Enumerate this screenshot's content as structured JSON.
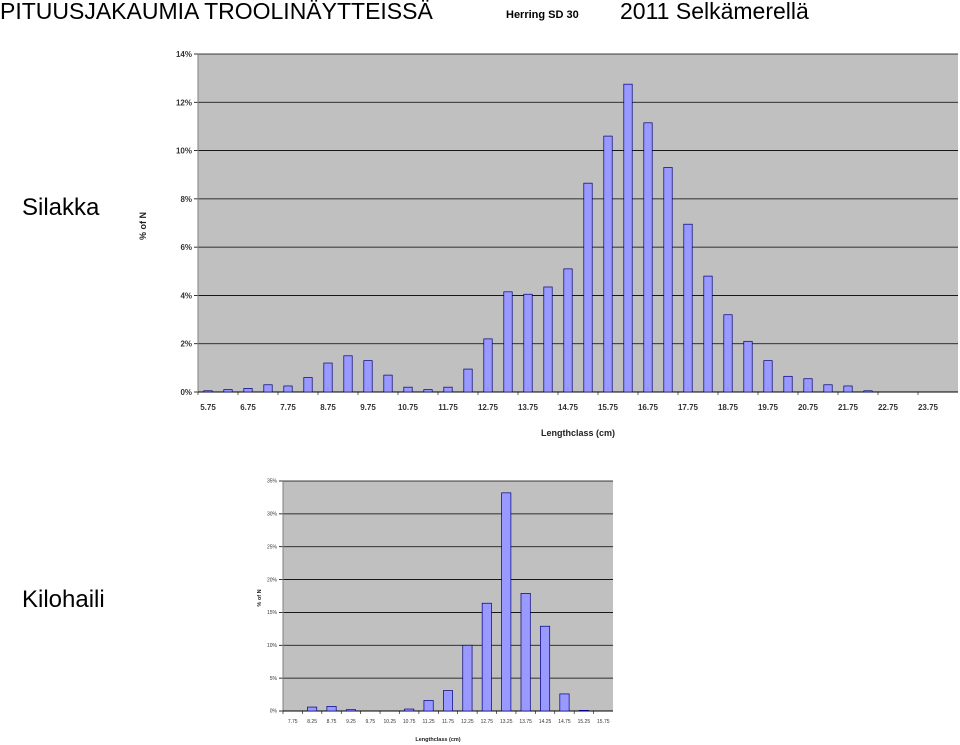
{
  "header": {
    "title": "PITUUSJAKAUMIA TROOLINÄYTTEISSÄ",
    "tag": "Herring SD 30",
    "title_right": "2011 Selkämerellä"
  },
  "labels": {
    "herring": "Silakka",
    "sprat": "Kilohaili"
  },
  "colors": {
    "plot_bg": "#c0c0c0",
    "bar_fill": "#9999ff",
    "bar_stroke": "#000080",
    "grid": "#000000"
  },
  "chart_data": [
    {
      "type": "bar",
      "xlabel": "Lengthclass (cm)",
      "ylabel": "% of N",
      "ylim": [
        0,
        14
      ],
      "yticks": [
        "0%",
        "2%",
        "4%",
        "6%",
        "8%",
        "10%",
        "12%",
        "14%"
      ],
      "categories": [
        "5.75",
        "6.25",
        "6.75",
        "7.25",
        "7.75",
        "8.25",
        "8.75",
        "9.25",
        "9.75",
        "10.25",
        "10.75",
        "11.25",
        "11.75",
        "12.25",
        "12.75",
        "13.25",
        "13.75",
        "14.25",
        "14.75",
        "15.25",
        "15.75",
        "16.25",
        "16.75",
        "17.25",
        "17.75",
        "18.25",
        "18.75",
        "19.25",
        "19.75",
        "20.25",
        "20.75",
        "21.25",
        "21.75",
        "22.25",
        "22.75",
        "23.25",
        "23.75",
        "24.25"
      ],
      "xtick_labels": [
        "5.75",
        "6.75",
        "7.75",
        "8.75",
        "9.75",
        "10.75",
        "11.75",
        "12.75",
        "13.75",
        "14.75",
        "15.75",
        "16.75",
        "17.75",
        "18.75",
        "19.75",
        "20.75",
        "21.75",
        "22.75",
        "23.75"
      ],
      "values": [
        0.05,
        0.1,
        0.15,
        0.3,
        0.25,
        0.6,
        1.2,
        1.5,
        1.3,
        0.7,
        0.2,
        0.1,
        0.2,
        0.95,
        2.2,
        4.15,
        4.05,
        4.35,
        5.1,
        8.65,
        10.6,
        12.75,
        11.15,
        9.3,
        6.95,
        4.8,
        3.2,
        2.1,
        1.3,
        0.65,
        0.55,
        0.3,
        0.25,
        0.05,
        0,
        0,
        0,
        0
      ]
    },
    {
      "type": "bar",
      "xlabel": "Lengthclass (cm)",
      "ylabel": "% of N",
      "ylim": [
        0,
        35
      ],
      "yticks": [
        "0%",
        "5%",
        "10%",
        "15%",
        "20%",
        "25%",
        "30%",
        "35%"
      ],
      "categories": [
        "7.75",
        "8.25",
        "8.75",
        "9.25",
        "9.75",
        "10.25",
        "10.75",
        "11.25",
        "11.75",
        "12.25",
        "12.75",
        "13.25",
        "13.75",
        "14.25",
        "14.75",
        "15.25",
        "15.75"
      ],
      "xtick_labels": [
        "7.75",
        "8.25",
        "8.75",
        "9.25",
        "9.75",
        "10.25",
        "10.75",
        "11.25",
        "11.75",
        "12.25",
        "12.75",
        "13.25",
        "13.75",
        "14.25",
        "14.75",
        "15.25",
        "15.75"
      ],
      "values": [
        0,
        0.6,
        0.7,
        0.2,
        0,
        0,
        0.3,
        1.6,
        3.1,
        10,
        16.4,
        33.2,
        17.9,
        12.9,
        2.6,
        0.1,
        0
      ]
    }
  ]
}
